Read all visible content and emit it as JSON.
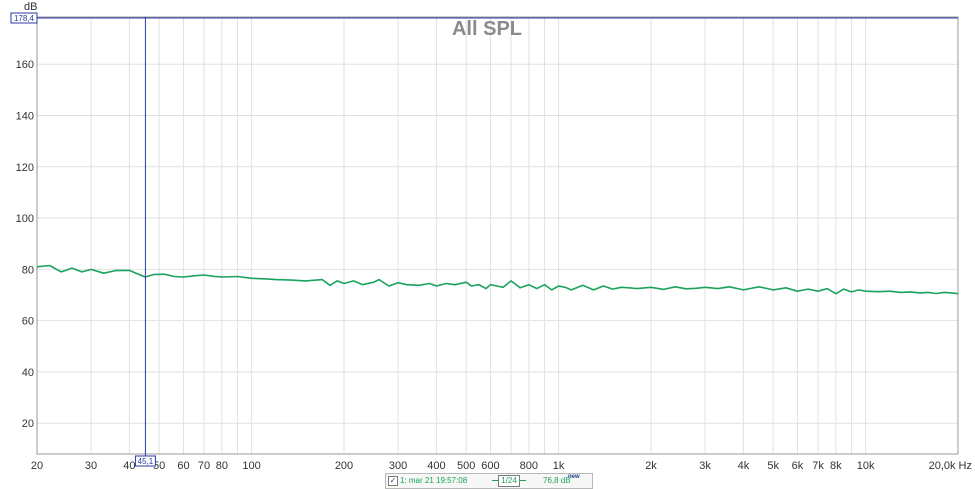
{
  "chart_data": {
    "type": "line",
    "title": "All SPL",
    "ylabel": "dB",
    "xlabel": "",
    "x_scale": "log",
    "xlim": [
      20,
      20000
    ],
    "ylim": [
      8,
      178.4
    ],
    "y_ticks": [
      20,
      40,
      60,
      80,
      100,
      120,
      140,
      160
    ],
    "x_ticks": [
      {
        "v": 20,
        "label": "20"
      },
      {
        "v": 30,
        "label": "30"
      },
      {
        "v": 40,
        "label": "40"
      },
      {
        "v": 50,
        "label": "50"
      },
      {
        "v": 60,
        "label": "60"
      },
      {
        "v": 70,
        "label": "70"
      },
      {
        "v": 80,
        "label": "80"
      },
      {
        "v": 100,
        "label": "100"
      },
      {
        "v": 200,
        "label": "200"
      },
      {
        "v": 300,
        "label": "300"
      },
      {
        "v": 400,
        "label": "400"
      },
      {
        "v": 500,
        "label": "500"
      },
      {
        "v": 600,
        "label": "600"
      },
      {
        "v": 800,
        "label": "800"
      },
      {
        "v": 1000,
        "label": "1k"
      },
      {
        "v": 2000,
        "label": "2k"
      },
      {
        "v": 3000,
        "label": "3k"
      },
      {
        "v": 4000,
        "label": "4k"
      },
      {
        "v": 5000,
        "label": "5k"
      },
      {
        "v": 6000,
        "label": "6k"
      },
      {
        "v": 7000,
        "label": "7k"
      },
      {
        "v": 8000,
        "label": "8k"
      },
      {
        "v": 10000,
        "label": "10k"
      },
      {
        "v": 20000,
        "label": "20,0k Hz"
      }
    ],
    "grid": true,
    "cursor": {
      "x": 45.1,
      "x_label": "45,1",
      "y": 178.4,
      "y_label": "178,4"
    },
    "series": [
      {
        "color": "#1aa35c",
        "x": [
          20,
          22,
          24,
          26,
          28,
          30,
          33,
          36,
          40,
          43,
          45,
          48,
          52,
          56,
          60,
          65,
          70,
          75,
          80,
          90,
          100,
          110,
          120,
          135,
          150,
          170,
          180,
          190,
          200,
          215,
          230,
          250,
          260,
          280,
          300,
          320,
          350,
          380,
          400,
          430,
          460,
          500,
          520,
          550,
          580,
          600,
          630,
          660,
          700,
          750,
          800,
          850,
          900,
          950,
          1000,
          1050,
          1100,
          1200,
          1300,
          1400,
          1500,
          1600,
          1700,
          1800,
          2000,
          2200,
          2400,
          2600,
          2800,
          3000,
          3300,
          3600,
          4000,
          4500,
          5000,
          5500,
          6000,
          6500,
          7000,
          7500,
          8000,
          8500,
          9000,
          9500,
          10000,
          11000,
          12000,
          13000,
          14000,
          15000,
          16000,
          17000,
          18000,
          19000,
          20000
        ],
        "y": [
          81,
          81.5,
          79,
          80.5,
          79,
          80,
          78.5,
          79.5,
          79.6,
          78,
          77,
          78,
          78.1,
          77.2,
          77,
          77.5,
          77.8,
          77.3,
          77,
          77.2,
          76.5,
          76.3,
          76,
          75.8,
          75.5,
          76,
          73.8,
          75.5,
          74.5,
          75.5,
          74,
          75,
          76,
          73.5,
          74.8,
          74,
          73.8,
          74.5,
          73.5,
          74.5,
          74,
          75,
          73.5,
          74,
          72.5,
          74,
          73.5,
          73,
          75.5,
          72.8,
          74,
          72.5,
          74,
          72,
          73.5,
          73,
          72,
          73.8,
          72,
          73.5,
          72.3,
          73,
          72.8,
          72.5,
          73,
          72.2,
          73.2,
          72.4,
          72.6,
          73,
          72.5,
          73.2,
          72,
          73.2,
          72,
          72.8,
          71.5,
          72.3,
          71.5,
          72.5,
          70.5,
          72.3,
          71.2,
          72,
          71.5,
          71.3,
          71.5,
          71,
          71.2,
          70.8,
          71,
          70.6,
          71,
          70.8,
          70.5
        ]
      }
    ]
  },
  "legend": {
    "check": "✓",
    "name": "1: mar 21 19:57:08",
    "smoothing": "1/24",
    "value": "76,8 dB",
    "value_sup": "new"
  }
}
